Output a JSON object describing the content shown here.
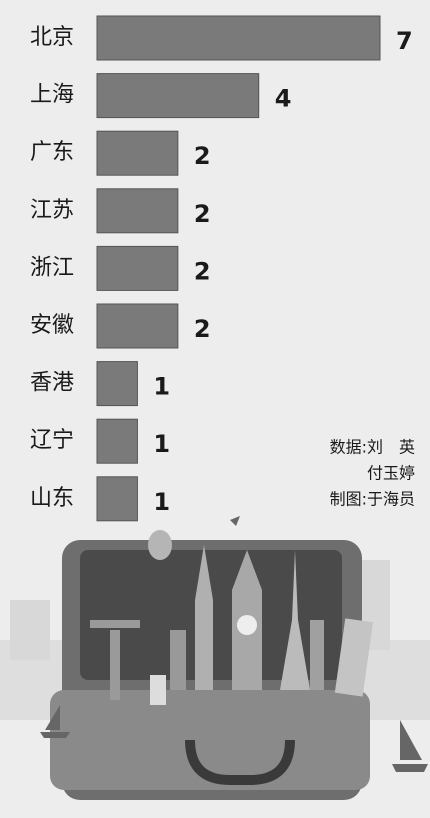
{
  "chart_data": {
    "type": "bar",
    "orientation": "horizontal",
    "categories": [
      "北京",
      "上海",
      "广东",
      "江苏",
      "浙江",
      "安徽",
      "香港",
      "辽宁",
      "山东"
    ],
    "values": [
      7,
      4,
      2,
      2,
      2,
      2,
      1,
      1,
      1
    ],
    "color": "#7a7a7a",
    "annotations": [
      "数据:刘　英",
      "付玉婷",
      "制图:于海员"
    ]
  }
}
